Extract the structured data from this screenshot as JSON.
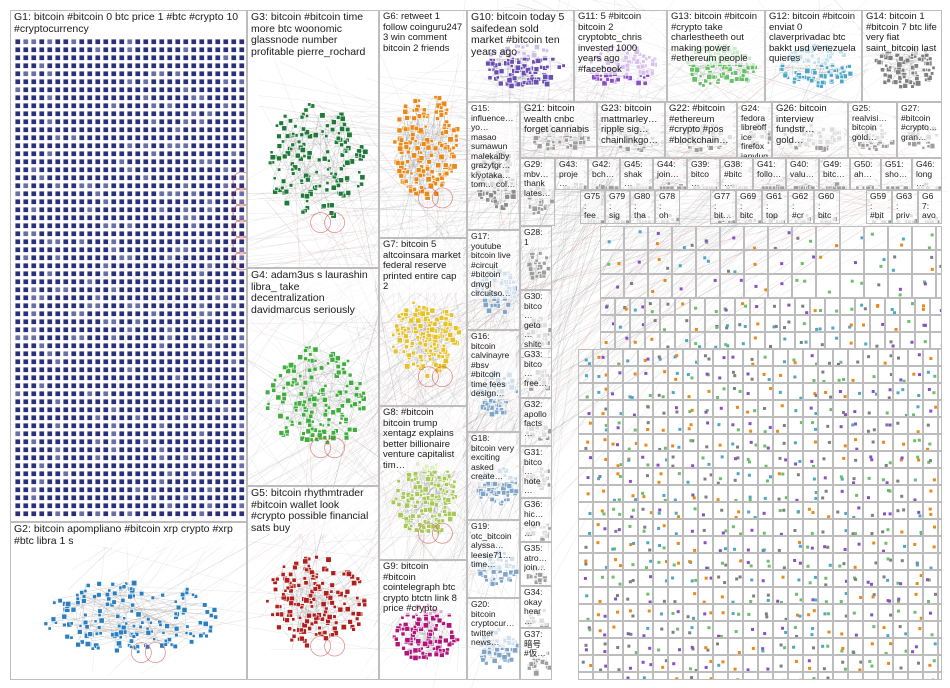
{
  "graph": {
    "groups": [
      {
        "id": "G1",
        "label": "G1: bitcoin #bitcoin 0 btc price 1 #btc #crypto 10 #cryptocurrency",
        "color": "#2b2f7a",
        "style": "grid"
      },
      {
        "id": "G2",
        "label": "G2: bitcoin apompliano #bitcoin xrp crypto #xrp #btc libra 1 s",
        "color": "#2a7fc1",
        "style": "cloud"
      },
      {
        "id": "G3",
        "label": "G3: bitcoin #bitcoin time more btc woonomic glassnode number profitable pierre_rochard",
        "color": "#1f7a3a",
        "style": "cloud"
      },
      {
        "id": "G4",
        "label": "G4: adam3us s laurashin libra_ take decentralization davidmarcus seriously",
        "color": "#3fae3f",
        "style": "cloud"
      },
      {
        "id": "G5",
        "label": "G5: bitcoin rhythmtrader #bitcoin wallet look #crypto possible financial sats buy",
        "color": "#b01e1e",
        "style": "cloud"
      },
      {
        "id": "G6",
        "label": "G6: retweet 1 follow coinguru247 3 win comment bitcoin 2 friends",
        "color": "#e8891a",
        "style": "cloud"
      },
      {
        "id": "G7",
        "label": "G7: bitcoin 5 altcoinsara market federal reserve printed entire cap 2",
        "color": "#e6c229",
        "style": "cloud"
      },
      {
        "id": "G8",
        "label": "G8: #bitcoin bitcoin trump xentagz explains better billionaire venture capitalist tim…",
        "color": "#a8c95a",
        "style": "cloud"
      },
      {
        "id": "G9",
        "label": "G9: bitcoin #bitcoin cointelegraph btc crypto btctn link 8 price #crypto",
        "color": "#b0157a",
        "style": "cloud"
      },
      {
        "id": "G10",
        "label": "G10: bitcoin today 5 saifedean sold market #bitcoin ten years ago",
        "color": "#6a4fb0",
        "style": "cloud"
      },
      {
        "id": "G11",
        "label": "G11: 5 #bitcoin bitcoin 2 cryptobtc_chris invested 1000 years ago #facebook",
        "color": "#8a4fc7",
        "style": "cloud"
      },
      {
        "id": "G12",
        "label": "G12: bitcoin #bitcoin enviat 0 claverprivadac btc bakkt usd venezuela quieres",
        "color": "#4fa7c7",
        "style": "cloud"
      },
      {
        "id": "G13",
        "label": "G13: bitcoin #bitcoin #crypto take charlestheeth out making power #ethereum people",
        "color": "#6bbf6b",
        "style": "cloud"
      },
      {
        "id": "G14",
        "label": "G14: bitcoin 1 #bitcoin 7 btc life very fiat saint_bitcoin last",
        "color": "#7f7f7f",
        "style": "cloud"
      },
      {
        "id": "G15",
        "label": "G15: influence… yo… masao sumawun malekalby grazytgr… kiyotaka… tom… col…",
        "color": "#8c8c8c",
        "style": "cloud"
      },
      {
        "id": "G21",
        "label": "G21: bitcoin wealth cnbc forget cannabis",
        "color": "#9e9e9e",
        "style": "cloud"
      },
      {
        "id": "G23",
        "label": "G23: bitcoin mattmarley… ripple sig… chainlinkgo…",
        "color": "#9e9e9e",
        "style": "cloud"
      },
      {
        "id": "G22",
        "label": "G22: #bitcoin #ethereum #crypto #pos #blockchain…",
        "color": "#9e9e9e",
        "style": "cloud"
      },
      {
        "id": "G24",
        "label": "G24: fedora libreoffice firefox janvlug…",
        "color": "#9e9e9e",
        "style": "cloud"
      },
      {
        "id": "G26",
        "label": "G26: bitcoin interview fundstr… gold…",
        "color": "#9e9e9e",
        "style": "cloud"
      },
      {
        "id": "G25",
        "label": "G25: realvisi… bitcoin gold…",
        "color": "#9e9e9e",
        "style": "cloud"
      },
      {
        "id": "G27",
        "label": "G27: #bitcoin #crypto… gran…",
        "color": "#9e9e9e",
        "style": "cloud"
      },
      {
        "id": "G17",
        "label": "G17: youtube bitcoin live #circuit #bitcoin dnvgl circuitso…",
        "color": "#7fa6c9",
        "style": "cloud"
      },
      {
        "id": "G16",
        "label": "G16: bitcoin calvinayre #bsv #bitcoin time fees design…",
        "color": "#7fa6c9",
        "style": "cloud"
      },
      {
        "id": "G18",
        "label": "G18: bitcoin very exciting asked create…",
        "color": "#7fa6c9",
        "style": "cloud"
      },
      {
        "id": "G19",
        "label": "G19: otc_bitcoin alyssa… leesie71… time…",
        "color": "#7fa6c9",
        "style": "cloud"
      },
      {
        "id": "G20",
        "label": "G20: bitcoin cryptocur… twitter news…",
        "color": "#7fa6c9",
        "style": "cloud"
      },
      {
        "id": "G29",
        "label": "G29: mbv… thank lates…",
        "color": "#9e9e9e",
        "style": "cloud"
      },
      {
        "id": "G43",
        "label": "G43: proje…",
        "color": "#9e9e9e",
        "style": "cloud"
      },
      {
        "id": "G42",
        "label": "G42: bch…",
        "color": "#9e9e9e",
        "style": "cloud"
      },
      {
        "id": "G45",
        "label": "G45: shak…",
        "color": "#9e9e9e",
        "style": "cloud"
      },
      {
        "id": "G44",
        "label": "G44: join…",
        "color": "#9e9e9e",
        "style": "cloud"
      },
      {
        "id": "G39",
        "label": "G39: bitco…",
        "color": "#9e9e9e",
        "style": "cloud"
      },
      {
        "id": "G38",
        "label": "G38: #bitc…",
        "color": "#9e9e9e",
        "style": "cloud"
      },
      {
        "id": "G41",
        "label": "G41: follo…",
        "color": "#9e9e9e",
        "style": "cloud"
      },
      {
        "id": "G40",
        "label": "G40: valu…",
        "color": "#9e9e9e",
        "style": "cloud"
      },
      {
        "id": "G49",
        "label": "G49: bitc…",
        "color": "#9e9e9e",
        "style": "cloud"
      },
      {
        "id": "G50",
        "label": "G50: ah…",
        "color": "#9e9e9e",
        "style": "cloud"
      },
      {
        "id": "G51",
        "label": "G51: sho…",
        "color": "#9e9e9e",
        "style": "cloud"
      },
      {
        "id": "G46",
        "label": "G46: long…",
        "color": "#9e9e9e",
        "style": "cloud"
      },
      {
        "id": "G28",
        "label": "G28: 1",
        "color": "#9e9e9e",
        "style": "cloud"
      },
      {
        "id": "G30",
        "label": "G30: bitco… geto… shitc…",
        "color": "#9e9e9e",
        "style": "cloud"
      },
      {
        "id": "G33",
        "label": "G33: bitco… free…",
        "color": "#9e9e9e",
        "style": "cloud"
      },
      {
        "id": "G32",
        "label": "G32: apollo facts…",
        "color": "#9e9e9e",
        "style": "cloud"
      },
      {
        "id": "G31",
        "label": "G31: bitco… hote…",
        "color": "#9e9e9e",
        "style": "cloud"
      },
      {
        "id": "G36",
        "label": "G36: hic… elon…",
        "color": "#9e9e9e",
        "style": "cloud"
      },
      {
        "id": "G35",
        "label": "G35: atro… join…",
        "color": "#9e9e9e",
        "style": "cloud"
      },
      {
        "id": "G34",
        "label": "G34: okay hear…",
        "color": "#9e9e9e",
        "style": "cloud"
      },
      {
        "id": "G37",
        "label": "G37: 暗号 #仮…",
        "color": "#9e9e9e",
        "style": "cloud"
      },
      {
        "id": "G75",
        "label": "G75: fee…",
        "color": "#9e9e9e",
        "style": "cloud"
      },
      {
        "id": "G79",
        "label": "G79: sig…",
        "color": "#9e9e9e",
        "style": "cloud"
      },
      {
        "id": "G80",
        "label": "G80: tha…",
        "color": "#9e9e9e",
        "style": "cloud"
      },
      {
        "id": "G78",
        "label": "G78: oh…",
        "color": "#9e9e9e",
        "style": "cloud"
      },
      {
        "id": "G77",
        "label": "G77: bit…",
        "color": "#9e9e9e",
        "style": "cloud"
      },
      {
        "id": "G69",
        "label": "G69: bitc…",
        "color": "#9e9e9e",
        "style": "cloud"
      },
      {
        "id": "G61",
        "label": "G61: top…",
        "color": "#9e9e9e",
        "style": "cloud"
      },
      {
        "id": "G62",
        "label": "G62: #cr…",
        "color": "#9e9e9e",
        "style": "cloud"
      },
      {
        "id": "G60",
        "label": "G60: bitc…",
        "color": "#9e9e9e",
        "style": "cloud"
      },
      {
        "id": "G59",
        "label": "G59: #bit…",
        "color": "#9e9e9e",
        "style": "cloud"
      },
      {
        "id": "G63",
        "label": "G63: priv…",
        "color": "#9e9e9e",
        "style": "cloud"
      },
      {
        "id": "G67",
        "label": "G67: avo…",
        "color": "#9e9e9e",
        "style": "cloud"
      }
    ],
    "cluster_hint": "G"
  }
}
